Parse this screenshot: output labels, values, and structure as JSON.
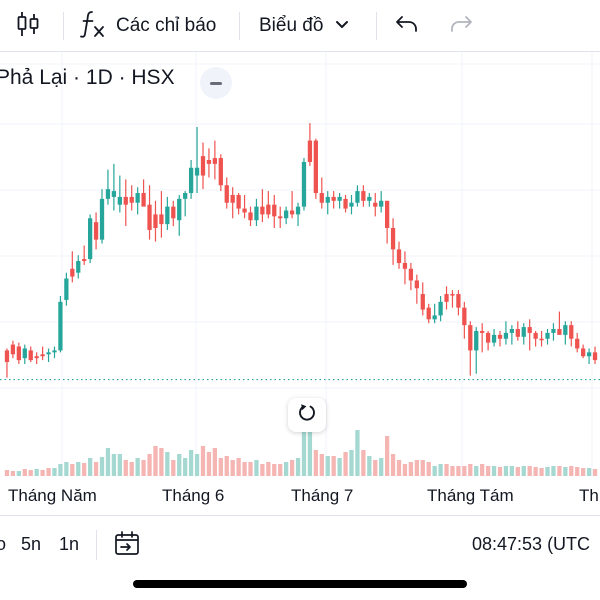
{
  "toolbar": {
    "candles_icon": "candles-icon",
    "indicators_label": "Các chỉ báo",
    "chart_type_label": "Biểu đồ",
    "undo_icon": "undo-icon",
    "redo_icon": "redo-icon"
  },
  "legend": {
    "symbol_text": "Phả Lại · 1D · HSX"
  },
  "time_axis": {
    "labels": [
      "Tháng Năm",
      "Tháng 6",
      "Tháng 7",
      "Tháng Tám",
      "Th"
    ]
  },
  "bottom_bar": {
    "ranges": [
      "o",
      "5n",
      "1n"
    ],
    "goto_icon": "goto-date-icon",
    "clock": "08:47:53 (UTC"
  },
  "colors": {
    "up": "#26a69a",
    "down": "#ef5350",
    "up_volume": "#a5d8d1",
    "down_volume": "#f5b5b3",
    "grid": "#f0f3fa",
    "price_line": "#26a69a"
  },
  "chart_data": {
    "type": "candlestick",
    "candles": [
      [
        36,
        43,
        28,
        42,
        "down"
      ],
      [
        45,
        47,
        38,
        40,
        "down"
      ],
      [
        44,
        46,
        35,
        37,
        "down"
      ],
      [
        38,
        45,
        35,
        43,
        "up"
      ],
      [
        42,
        44,
        36,
        37,
        "down"
      ],
      [
        39,
        41,
        35,
        38,
        "down"
      ],
      [
        40,
        44,
        37,
        39,
        "down"
      ],
      [
        40,
        43,
        36,
        41,
        "up"
      ],
      [
        41,
        44,
        38,
        42,
        "up"
      ],
      [
        42,
        70,
        41,
        67,
        "up"
      ],
      [
        68,
        82,
        65,
        79,
        "up"
      ],
      [
        80,
        93,
        77,
        84,
        "down"
      ],
      [
        82,
        91,
        79,
        88,
        "up"
      ],
      [
        88,
        96,
        86,
        89,
        "down"
      ],
      [
        89,
        112,
        87,
        110,
        "up"
      ],
      [
        108,
        113,
        94,
        99,
        "down"
      ],
      [
        99,
        125,
        97,
        120,
        "up"
      ],
      [
        120,
        135,
        117,
        125,
        "up"
      ],
      [
        124,
        138,
        114,
        121,
        "up"
      ],
      [
        121,
        132,
        113,
        117,
        "up"
      ],
      [
        117,
        130,
        106,
        121,
        "down"
      ],
      [
        121,
        127,
        114,
        118,
        "down"
      ],
      [
        118,
        126,
        112,
        123,
        "up"
      ],
      [
        123,
        130,
        117,
        116,
        "down"
      ],
      [
        117,
        127,
        99,
        104,
        "down"
      ],
      [
        105,
        119,
        98,
        112,
        "down"
      ],
      [
        112,
        124,
        100,
        107,
        "down"
      ],
      [
        107,
        121,
        104,
        116,
        "up"
      ],
      [
        116,
        119,
        106,
        110,
        "down"
      ],
      [
        109,
        122,
        101,
        120,
        "up"
      ],
      [
        120,
        124,
        111,
        123,
        "up"
      ],
      [
        123,
        140,
        120,
        136,
        "up"
      ],
      [
        136,
        157,
        123,
        132,
        "up"
      ],
      [
        132,
        149,
        125,
        142,
        "down"
      ],
      [
        140,
        146,
        131,
        138,
        "down"
      ],
      [
        138,
        150,
        130,
        141,
        "down"
      ],
      [
        141,
        143,
        124,
        127,
        "down"
      ],
      [
        127,
        131,
        115,
        118,
        "down"
      ],
      [
        118,
        126,
        110,
        122,
        "down"
      ],
      [
        122,
        123,
        112,
        115,
        "down"
      ],
      [
        115,
        122,
        110,
        113,
        "down"
      ],
      [
        113,
        116,
        106,
        109,
        "down"
      ],
      [
        109,
        120,
        106,
        116,
        "up"
      ],
      [
        116,
        125,
        108,
        112,
        "down"
      ],
      [
        112,
        124,
        110,
        117,
        "down"
      ],
      [
        117,
        122,
        105,
        111,
        "down"
      ],
      [
        111,
        116,
        105,
        110,
        "down"
      ],
      [
        110,
        116,
        107,
        114,
        "up"
      ],
      [
        114,
        124,
        110,
        112,
        "down"
      ],
      [
        112,
        118,
        106,
        116,
        "up"
      ],
      [
        116,
        141,
        114,
        139,
        "up"
      ],
      [
        139,
        159,
        137,
        150,
        "down"
      ],
      [
        150,
        151,
        120,
        123,
        "down"
      ],
      [
        123,
        131,
        115,
        118,
        "down"
      ],
      [
        118,
        124,
        112,
        121,
        "up"
      ],
      [
        121,
        124,
        115,
        119,
        "down"
      ],
      [
        119,
        123,
        115,
        121,
        "up"
      ],
      [
        120,
        122,
        113,
        115,
        "down"
      ],
      [
        116,
        122,
        112,
        118,
        "up"
      ],
      [
        118,
        127,
        116,
        124,
        "up"
      ],
      [
        124,
        127,
        116,
        119,
        "down"
      ],
      [
        119,
        123,
        116,
        121,
        "up"
      ],
      [
        118,
        123,
        111,
        116,
        "down"
      ],
      [
        116,
        124,
        113,
        119,
        "up"
      ],
      [
        119,
        119,
        97,
        105,
        "down"
      ],
      [
        105,
        110,
        86,
        94,
        "down"
      ],
      [
        94,
        98,
        84,
        87,
        "down"
      ],
      [
        87,
        93,
        76,
        84,
        "down"
      ],
      [
        84,
        87,
        73,
        78,
        "down"
      ],
      [
        78,
        81,
        66,
        74,
        "down"
      ],
      [
        71,
        77,
        60,
        63,
        "down"
      ],
      [
        64,
        66,
        56,
        58,
        "down"
      ],
      [
        58,
        66,
        56,
        60,
        "up"
      ],
      [
        60,
        70,
        57,
        67,
        "up"
      ],
      [
        67,
        75,
        63,
        71,
        "down"
      ],
      [
        71,
        73,
        64,
        71,
        "down"
      ],
      [
        71,
        73,
        60,
        64,
        "down"
      ],
      [
        64,
        67,
        48,
        55,
        "down"
      ],
      [
        55,
        57,
        29,
        42,
        "down"
      ],
      [
        42,
        54,
        30,
        52,
        "up"
      ],
      [
        52,
        56,
        41,
        51,
        "down"
      ],
      [
        51,
        52,
        42,
        46,
        "down"
      ],
      [
        46,
        53,
        44,
        50,
        "up"
      ],
      [
        50,
        52,
        44,
        48,
        "down"
      ],
      [
        48,
        57,
        45,
        51,
        "up"
      ],
      [
        51,
        55,
        45,
        53,
        "up"
      ],
      [
        53,
        57,
        47,
        49,
        "down"
      ],
      [
        49,
        56,
        45,
        54,
        "up"
      ],
      [
        54,
        58,
        42,
        51,
        "down"
      ],
      [
        51,
        52,
        44,
        48,
        "down"
      ],
      [
        48,
        52,
        44,
        48,
        "down"
      ],
      [
        48,
        53,
        45,
        51,
        "up"
      ],
      [
        51,
        56,
        47,
        53,
        "up"
      ],
      [
        53,
        62,
        50,
        50,
        "down"
      ],
      [
        50,
        57,
        45,
        55,
        "up"
      ],
      [
        55,
        57,
        44,
        48,
        "down"
      ],
      [
        48,
        51,
        41,
        43,
        "down"
      ],
      [
        43,
        45,
        38,
        39,
        "down"
      ],
      [
        39,
        43,
        35,
        41,
        "up"
      ],
      [
        41,
        44,
        35,
        37,
        "down"
      ]
    ],
    "volume": [
      [
        6,
        "down"
      ],
      [
        5,
        "down"
      ],
      [
        5,
        "up"
      ],
      [
        7,
        "down"
      ],
      [
        6,
        "down"
      ],
      [
        7,
        "up"
      ],
      [
        6,
        "down"
      ],
      [
        8,
        "down"
      ],
      [
        8,
        "up"
      ],
      [
        12,
        "up"
      ],
      [
        14,
        "up"
      ],
      [
        12,
        "down"
      ],
      [
        14,
        "up"
      ],
      [
        13,
        "down"
      ],
      [
        18,
        "up"
      ],
      [
        14,
        "down"
      ],
      [
        19,
        "up"
      ],
      [
        28,
        "up"
      ],
      [
        22,
        "up"
      ],
      [
        22,
        "up"
      ],
      [
        16,
        "down"
      ],
      [
        14,
        "down"
      ],
      [
        18,
        "up"
      ],
      [
        16,
        "down"
      ],
      [
        22,
        "down"
      ],
      [
        30,
        "down"
      ],
      [
        28,
        "down"
      ],
      [
        24,
        "up"
      ],
      [
        16,
        "down"
      ],
      [
        22,
        "up"
      ],
      [
        18,
        "up"
      ],
      [
        26,
        "up"
      ],
      [
        22,
        "up"
      ],
      [
        30,
        "down"
      ],
      [
        24,
        "down"
      ],
      [
        28,
        "down"
      ],
      [
        18,
        "down"
      ],
      [
        20,
        "down"
      ],
      [
        16,
        "down"
      ],
      [
        18,
        "down"
      ],
      [
        14,
        "down"
      ],
      [
        14,
        "down"
      ],
      [
        16,
        "up"
      ],
      [
        12,
        "down"
      ],
      [
        14,
        "down"
      ],
      [
        12,
        "down"
      ],
      [
        12,
        "down"
      ],
      [
        14,
        "up"
      ],
      [
        16,
        "down"
      ],
      [
        18,
        "up"
      ],
      [
        46,
        "up"
      ],
      [
        64,
        "up"
      ],
      [
        26,
        "down"
      ],
      [
        22,
        "down"
      ],
      [
        20,
        "up"
      ],
      [
        20,
        "down"
      ],
      [
        18,
        "up"
      ],
      [
        24,
        "down"
      ],
      [
        26,
        "up"
      ],
      [
        46,
        "up"
      ],
      [
        26,
        "down"
      ],
      [
        20,
        "up"
      ],
      [
        16,
        "down"
      ],
      [
        18,
        "up"
      ],
      [
        40,
        "down"
      ],
      [
        22,
        "down"
      ],
      [
        16,
        "down"
      ],
      [
        12,
        "down"
      ],
      [
        14,
        "down"
      ],
      [
        16,
        "down"
      ],
      [
        16,
        "down"
      ],
      [
        14,
        "down"
      ],
      [
        10,
        "up"
      ],
      [
        12,
        "up"
      ],
      [
        12,
        "down"
      ],
      [
        10,
        "down"
      ],
      [
        10,
        "down"
      ],
      [
        10,
        "down"
      ],
      [
        12,
        "down"
      ],
      [
        10,
        "up"
      ],
      [
        12,
        "down"
      ],
      [
        10,
        "down"
      ],
      [
        10,
        "up"
      ],
      [
        9,
        "down"
      ],
      [
        10,
        "up"
      ],
      [
        10,
        "up"
      ],
      [
        9,
        "down"
      ],
      [
        10,
        "up"
      ],
      [
        10,
        "down"
      ],
      [
        9,
        "down"
      ],
      [
        8,
        "down"
      ],
      [
        9,
        "up"
      ],
      [
        10,
        "up"
      ],
      [
        10,
        "down"
      ],
      [
        9,
        "up"
      ],
      [
        10,
        "down"
      ],
      [
        9,
        "down"
      ],
      [
        8,
        "down"
      ],
      [
        8,
        "up"
      ],
      [
        7,
        "down"
      ]
    ],
    "price_line": 27,
    "ylim": [
      0,
      175
    ],
    "volume_max": 70,
    "grid": true
  }
}
